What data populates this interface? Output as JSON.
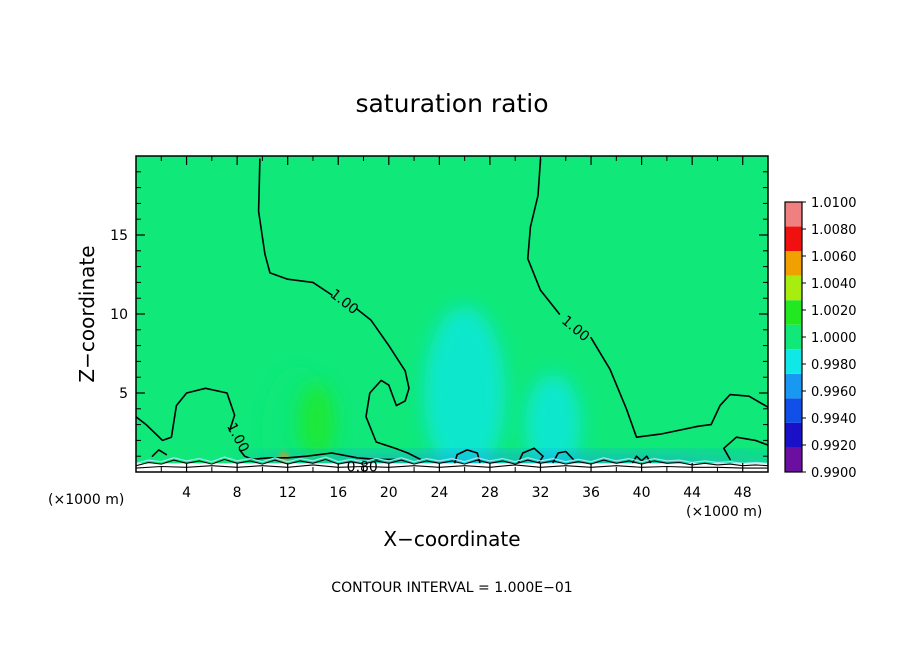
{
  "chart_data": {
    "type": "heatmap",
    "title": "saturation ratio",
    "xlabel": "X−coordinate",
    "ylabel": "Z−coordinate",
    "x_unit": "(×1000 m)",
    "y_unit": "(×1000 m)",
    "xlim": [
      0,
      50
    ],
    "ylim": [
      0,
      20
    ],
    "x_ticks": [
      4,
      8,
      12,
      16,
      20,
      24,
      28,
      32,
      36,
      40,
      44,
      48
    ],
    "x_tick_labels": [
      "4",
      "8",
      "12",
      "16",
      "20",
      "24",
      "28",
      "32",
      "36",
      "40",
      "44",
      "48"
    ],
    "y_ticks": [
      5,
      10,
      15
    ],
    "y_tick_labels": [
      "5",
      "10",
      "15"
    ],
    "background_value": 1.0005,
    "colorbar": {
      "levels": [
        0.99,
        0.992,
        0.994,
        0.996,
        0.998,
        1.0,
        1.002,
        1.004,
        1.006,
        1.008,
        1.01
      ],
      "labels": [
        "0.9900",
        "0.9920",
        "0.9940",
        "0.9960",
        "0.9980",
        "1.0000",
        "1.0020",
        "1.0040",
        "1.0060",
        "1.0080",
        "1.0100"
      ],
      "colors": [
        "#6a0fa0",
        "#1a10c8",
        "#1050e8",
        "#1898f0",
        "#10e8e8",
        "#10e87a",
        "#22e822",
        "#a8ec10",
        "#f0a000",
        "#f01010",
        "#f08080"
      ]
    },
    "anomalies": [
      {
        "x": 12.8,
        "z": 2.5,
        "rx": 2.8,
        "rz": 4.2,
        "value": 1.0018
      },
      {
        "x": 14.3,
        "z": 3.2,
        "rx": 1.4,
        "rz": 2.4,
        "value": 1.0024
      },
      {
        "x": 11.7,
        "z": 0.9,
        "rx": 0.35,
        "rz": 0.35,
        "value": 1.0065
      },
      {
        "x": 26.0,
        "z": 5.0,
        "rx": 3.2,
        "rz": 5.5,
        "value": 0.9988
      },
      {
        "x": 33.0,
        "z": 3.0,
        "rx": 2.2,
        "rz": 3.2,
        "value": 0.9992
      },
      {
        "x": 30.0,
        "z": 0.7,
        "rx": 22.0,
        "rz": 0.4,
        "value": 0.997
      }
    ],
    "contour_labels": [
      {
        "text": "1.00",
        "x": 16.5,
        "z": 10.8,
        "angle": 38
      },
      {
        "text": "1.00",
        "x": 34.8,
        "z": 9.1,
        "angle": 40
      },
      {
        "text": "1.00",
        "x": 8.1,
        "z": 2.2,
        "angle": 62
      },
      {
        "text": "0.80",
        "x": 17.9,
        "z": 0.35,
        "angle": 0
      }
    ],
    "contours_1_00": [
      [
        [
          9.8,
          19.8
        ],
        [
          9.7,
          16.5
        ],
        [
          10.2,
          13.8
        ],
        [
          10.6,
          12.6
        ],
        [
          12.0,
          12.2
        ],
        [
          14.0,
          12.0
        ],
        [
          15.5,
          11.2
        ]
      ],
      [
        [
          17.5,
          10.3
        ],
        [
          18.6,
          9.6
        ],
        [
          20.0,
          8.0
        ],
        [
          21.3,
          6.4
        ],
        [
          21.6,
          5.3
        ],
        [
          21.3,
          4.5
        ],
        [
          20.6,
          4.2
        ],
        [
          20.0,
          5.5
        ],
        [
          19.4,
          5.8
        ],
        [
          18.5,
          5.0
        ],
        [
          18.2,
          3.5
        ],
        [
          19.0,
          1.9
        ],
        [
          20.5,
          1.5
        ],
        [
          21.5,
          1.2
        ],
        [
          22.5,
          0.8
        ]
      ],
      [
        [
          32.0,
          19.8
        ],
        [
          31.8,
          17.5
        ],
        [
          31.2,
          15.5
        ],
        [
          31.0,
          13.5
        ],
        [
          32.0,
          11.5
        ],
        [
          33.5,
          10.0
        ]
      ],
      [
        [
          36.0,
          8.5
        ],
        [
          37.5,
          6.5
        ],
        [
          38.8,
          4.0
        ],
        [
          39.6,
          2.2
        ],
        [
          41.5,
          2.4
        ],
        [
          44.5,
          2.9
        ],
        [
          45.5,
          3.0
        ],
        [
          46.2,
          4.2
        ],
        [
          47.0,
          4.9
        ],
        [
          48.5,
          4.8
        ],
        [
          50.0,
          4.1
        ]
      ],
      [
        [
          0.0,
          3.5
        ],
        [
          0.8,
          3.0
        ],
        [
          2.1,
          2.0
        ],
        [
          2.8,
          2.2
        ],
        [
          3.2,
          4.2
        ],
        [
          4.0,
          5.0
        ],
        [
          5.5,
          5.3
        ],
        [
          7.2,
          5.0
        ],
        [
          7.8,
          3.6
        ],
        [
          7.4,
          2.6
        ]
      ],
      [
        [
          8.2,
          1.4
        ],
        [
          8.6,
          1.0
        ],
        [
          9.2,
          0.8
        ],
        [
          10.5,
          0.9
        ],
        [
          12.0,
          0.9
        ],
        [
          13.5,
          1.0
        ],
        [
          15.5,
          1.2
        ],
        [
          17.5,
          0.9
        ],
        [
          19.0,
          0.8
        ],
        [
          20.5,
          0.8
        ]
      ],
      [
        [
          25.2,
          0.5
        ],
        [
          25.4,
          1.1
        ],
        [
          26.2,
          1.4
        ],
        [
          27.0,
          1.2
        ],
        [
          27.2,
          0.6
        ]
      ],
      [
        [
          30.2,
          0.5
        ],
        [
          30.6,
          1.2
        ],
        [
          31.5,
          1.5
        ],
        [
          32.2,
          1.0
        ],
        [
          31.8,
          0.5
        ]
      ],
      [
        [
          33.0,
          0.6
        ],
        [
          33.4,
          1.2
        ],
        [
          34.0,
          1.3
        ],
        [
          34.6,
          0.8
        ]
      ],
      [
        [
          47.0,
          0.8
        ],
        [
          46.5,
          1.5
        ],
        [
          47.5,
          2.2
        ],
        [
          49.0,
          2.0
        ],
        [
          50.0,
          1.7
        ]
      ],
      [
        [
          1.3,
          1.0
        ],
        [
          1.8,
          1.4
        ],
        [
          2.4,
          1.1
        ]
      ],
      [
        [
          39.3,
          0.6
        ],
        [
          39.6,
          1.0
        ],
        [
          40.0,
          0.7
        ],
        [
          40.4,
          1.0
        ],
        [
          40.7,
          0.6
        ]
      ]
    ],
    "surface_lines": [
      [
        [
          0.0,
          0.4
        ],
        [
          1.0,
          0.6
        ],
        [
          2.0,
          0.5
        ],
        [
          3.0,
          0.75
        ],
        [
          4.0,
          0.55
        ],
        [
          5.0,
          0.7
        ],
        [
          6.0,
          0.5
        ],
        [
          7.0,
          0.8
        ],
        [
          8.0,
          0.55
        ],
        [
          9.0,
          0.7
        ],
        [
          10.0,
          0.5
        ],
        [
          11.0,
          0.75
        ],
        [
          12.0,
          0.5
        ],
        [
          13.0,
          0.7
        ],
        [
          14.0,
          0.55
        ],
        [
          15.0,
          0.8
        ],
        [
          16.0,
          0.5
        ],
        [
          17.0,
          0.65
        ],
        [
          18.0,
          0.5
        ],
        [
          19.0,
          0.7
        ],
        [
          20.0,
          0.55
        ],
        [
          21.0,
          0.75
        ],
        [
          22.0,
          0.5
        ],
        [
          23.0,
          0.7
        ],
        [
          24.0,
          0.55
        ],
        [
          25.0,
          0.7
        ],
        [
          26.0,
          0.5
        ],
        [
          27.0,
          0.75
        ],
        [
          28.0,
          0.55
        ],
        [
          29.0,
          0.7
        ],
        [
          30.0,
          0.5
        ],
        [
          31.0,
          0.75
        ],
        [
          32.0,
          0.55
        ],
        [
          33.0,
          0.7
        ],
        [
          34.0,
          0.5
        ],
        [
          35.0,
          0.65
        ],
        [
          36.0,
          0.5
        ],
        [
          37.0,
          0.75
        ],
        [
          38.0,
          0.55
        ],
        [
          39.0,
          0.7
        ],
        [
          40.0,
          0.5
        ],
        [
          41.0,
          0.7
        ],
        [
          42.0,
          0.55
        ],
        [
          43.0,
          0.6
        ],
        [
          44.0,
          0.45
        ],
        [
          45.0,
          0.55
        ],
        [
          46.0,
          0.45
        ],
        [
          47.0,
          0.5
        ],
        [
          48.0,
          0.4
        ],
        [
          49.0,
          0.45
        ],
        [
          50.0,
          0.4
        ]
      ],
      [
        [
          0.0,
          0.25
        ],
        [
          2.0,
          0.35
        ],
        [
          4.0,
          0.3
        ],
        [
          6.0,
          0.4
        ],
        [
          8.0,
          0.3
        ],
        [
          10.0,
          0.4
        ],
        [
          12.0,
          0.3
        ],
        [
          14.0,
          0.45
        ],
        [
          16.0,
          0.3
        ],
        [
          18.0,
          0.35
        ],
        [
          20.0,
          0.3
        ],
        [
          22.0,
          0.4
        ],
        [
          24.0,
          0.3
        ],
        [
          26.0,
          0.4
        ],
        [
          28.0,
          0.3
        ],
        [
          30.0,
          0.45
        ],
        [
          32.0,
          0.3
        ],
        [
          34.0,
          0.4
        ],
        [
          36.0,
          0.3
        ],
        [
          38.0,
          0.4
        ],
        [
          40.0,
          0.3
        ],
        [
          42.0,
          0.35
        ],
        [
          44.0,
          0.3
        ],
        [
          46.0,
          0.3
        ],
        [
          48.0,
          0.25
        ],
        [
          50.0,
          0.25
        ]
      ]
    ],
    "footer_text": "CONTOUR INTERVAL = 1.000E−01"
  }
}
